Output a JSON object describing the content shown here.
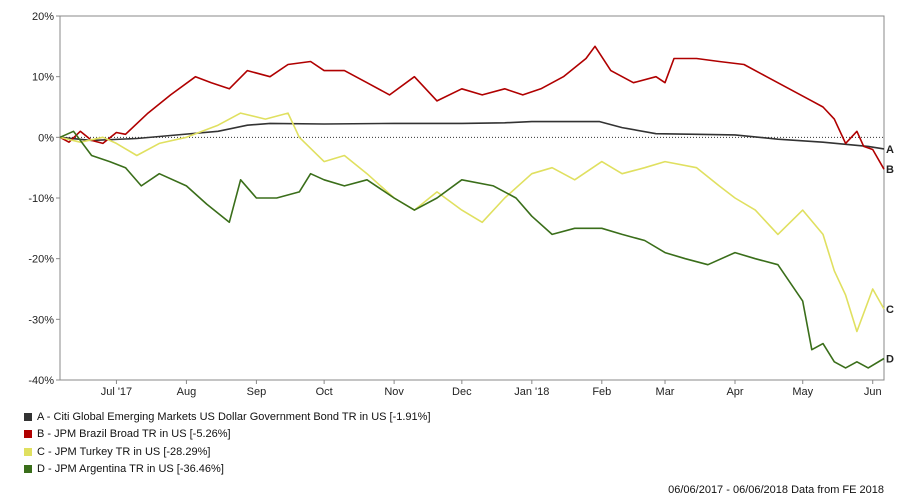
{
  "chart_data": {
    "type": "line",
    "y_ticks": [
      "20%",
      "10%",
      "0%",
      "-10%",
      "-20%",
      "-30%",
      "-40%"
    ],
    "ylim": [
      -40,
      20
    ],
    "x_ticks": [
      "Jul '17",
      "Aug",
      "Sep",
      "Oct",
      "Nov",
      "Dec",
      "Jan '18",
      "Feb",
      "Mar",
      "Apr",
      "May",
      "Jun"
    ],
    "x_tick_dates": [
      "2017-07-01",
      "2017-08-01",
      "2017-09-01",
      "2017-10-01",
      "2017-11-01",
      "2017-12-01",
      "2018-01-01",
      "2018-02-01",
      "2018-03-01",
      "2018-04-01",
      "2018-05-01",
      "2018-06-01"
    ],
    "xlim": [
      "2017-06-06",
      "2018-06-06"
    ],
    "grid": "horizontal zero line only",
    "series": [
      {
        "name": "A - Citi Global Emerging Markets US Dollar Government Bond TR in US [-1.91%]",
        "end_label": "A",
        "color": "#333333",
        "points": [
          [
            "2017-06-06",
            0
          ],
          [
            "2017-06-20",
            -0.5
          ],
          [
            "2017-07-10",
            -0.2
          ],
          [
            "2017-07-25",
            0.3
          ],
          [
            "2017-08-15",
            1
          ],
          [
            "2017-08-28",
            2
          ],
          [
            "2017-09-07",
            2.3
          ],
          [
            "2017-10-01",
            2.2
          ],
          [
            "2017-11-01",
            2.3
          ],
          [
            "2017-12-01",
            2.3
          ],
          [
            "2017-12-20",
            2.4
          ],
          [
            "2018-01-01",
            2.6
          ],
          [
            "2018-01-31",
            2.6
          ],
          [
            "2018-02-10",
            1.6
          ],
          [
            "2018-02-25",
            0.6
          ],
          [
            "2018-03-15",
            0.5
          ],
          [
            "2018-04-01",
            0.4
          ],
          [
            "2018-04-20",
            -0.3
          ],
          [
            "2018-05-10",
            -0.8
          ],
          [
            "2018-05-30",
            -1.5
          ],
          [
            "2018-06-06",
            -1.91
          ]
        ]
      },
      {
        "name": "B - JPM Brazil Broad TR in US [-5.26%]",
        "end_label": "B",
        "color": "#b00000",
        "points": [
          [
            "2017-06-06",
            0
          ],
          [
            "2017-06-10",
            -0.8
          ],
          [
            "2017-06-15",
            1
          ],
          [
            "2017-06-20",
            -0.5
          ],
          [
            "2017-06-25",
            -1
          ],
          [
            "2017-07-01",
            0.8
          ],
          [
            "2017-07-05",
            0.5
          ],
          [
            "2017-07-15",
            4
          ],
          [
            "2017-07-25",
            7
          ],
          [
            "2017-08-05",
            10
          ],
          [
            "2017-08-12",
            9
          ],
          [
            "2017-08-20",
            8
          ],
          [
            "2017-08-28",
            11
          ],
          [
            "2017-09-07",
            10
          ],
          [
            "2017-09-15",
            12
          ],
          [
            "2017-09-25",
            12.5
          ],
          [
            "2017-10-01",
            11
          ],
          [
            "2017-10-10",
            11
          ],
          [
            "2017-10-20",
            9
          ],
          [
            "2017-10-30",
            7
          ],
          [
            "2017-11-10",
            10
          ],
          [
            "2017-11-20",
            6
          ],
          [
            "2017-12-01",
            8
          ],
          [
            "2017-12-10",
            7
          ],
          [
            "2017-12-20",
            8
          ],
          [
            "2017-12-28",
            7
          ],
          [
            "2018-01-05",
            8
          ],
          [
            "2018-01-15",
            10
          ],
          [
            "2018-01-25",
            13
          ],
          [
            "2018-01-29",
            15
          ],
          [
            "2018-02-05",
            11
          ],
          [
            "2018-02-15",
            9
          ],
          [
            "2018-02-25",
            10
          ],
          [
            "2018-03-01",
            9
          ],
          [
            "2018-03-05",
            13
          ],
          [
            "2018-03-15",
            13
          ],
          [
            "2018-03-25",
            12.5
          ],
          [
            "2018-04-05",
            12
          ],
          [
            "2018-04-15",
            10
          ],
          [
            "2018-04-25",
            8
          ],
          [
            "2018-05-05",
            6
          ],
          [
            "2018-05-10",
            5
          ],
          [
            "2018-05-15",
            3
          ],
          [
            "2018-05-20",
            -1
          ],
          [
            "2018-05-25",
            1
          ],
          [
            "2018-05-28",
            -1.5
          ],
          [
            "2018-06-01",
            -2
          ],
          [
            "2018-06-06",
            -5.26
          ]
        ]
      },
      {
        "name": "C - JPM Turkey TR in US [-28.29%]",
        "end_label": "C",
        "color": "#e0e060",
        "points": [
          [
            "2017-06-06",
            0
          ],
          [
            "2017-06-15",
            -0.8
          ],
          [
            "2017-06-25",
            0
          ],
          [
            "2017-07-01",
            -1
          ],
          [
            "2017-07-10",
            -3
          ],
          [
            "2017-07-20",
            -1
          ],
          [
            "2017-08-01",
            0
          ],
          [
            "2017-08-15",
            2
          ],
          [
            "2017-08-25",
            4
          ],
          [
            "2017-09-05",
            3
          ],
          [
            "2017-09-15",
            4
          ],
          [
            "2017-09-20",
            0
          ],
          [
            "2017-10-01",
            -4
          ],
          [
            "2017-10-10",
            -3
          ],
          [
            "2017-10-20",
            -6
          ],
          [
            "2017-11-01",
            -10
          ],
          [
            "2017-11-10",
            -12
          ],
          [
            "2017-11-20",
            -9
          ],
          [
            "2017-12-01",
            -12
          ],
          [
            "2017-12-10",
            -14
          ],
          [
            "2017-12-20",
            -10
          ],
          [
            "2018-01-01",
            -6
          ],
          [
            "2018-01-10",
            -5
          ],
          [
            "2018-01-20",
            -7
          ],
          [
            "2018-02-01",
            -4
          ],
          [
            "2018-02-10",
            -6
          ],
          [
            "2018-02-20",
            -5
          ],
          [
            "2018-03-01",
            -4
          ],
          [
            "2018-03-15",
            -5
          ],
          [
            "2018-03-25",
            -8
          ],
          [
            "2018-04-01",
            -10
          ],
          [
            "2018-04-10",
            -12
          ],
          [
            "2018-04-20",
            -16
          ],
          [
            "2018-05-01",
            -12
          ],
          [
            "2018-05-10",
            -16
          ],
          [
            "2018-05-15",
            -22
          ],
          [
            "2018-05-20",
            -26
          ],
          [
            "2018-05-25",
            -32
          ],
          [
            "2018-06-01",
            -25
          ],
          [
            "2018-06-06",
            -28.29
          ]
        ]
      },
      {
        "name": "D - JPM Argentina TR in US [-36.46%]",
        "end_label": "D",
        "color": "#3a6e1a",
        "points": [
          [
            "2017-06-06",
            0
          ],
          [
            "2017-06-12",
            1
          ],
          [
            "2017-06-20",
            -3
          ],
          [
            "2017-06-28",
            -4
          ],
          [
            "2017-07-05",
            -5
          ],
          [
            "2017-07-12",
            -8
          ],
          [
            "2017-07-20",
            -6
          ],
          [
            "2017-08-01",
            -8
          ],
          [
            "2017-08-10",
            -11
          ],
          [
            "2017-08-20",
            -14
          ],
          [
            "2017-08-25",
            -7
          ],
          [
            "2017-09-01",
            -10
          ],
          [
            "2017-09-10",
            -10
          ],
          [
            "2017-09-20",
            -9
          ],
          [
            "2017-09-25",
            -6
          ],
          [
            "2017-10-01",
            -7
          ],
          [
            "2017-10-10",
            -8
          ],
          [
            "2017-10-20",
            -7
          ],
          [
            "2017-11-01",
            -10
          ],
          [
            "2017-11-10",
            -12
          ],
          [
            "2017-11-20",
            -10
          ],
          [
            "2017-12-01",
            -7
          ],
          [
            "2017-12-15",
            -8
          ],
          [
            "2017-12-25",
            -10
          ],
          [
            "2018-01-01",
            -13
          ],
          [
            "2018-01-10",
            -16
          ],
          [
            "2018-01-20",
            -15
          ],
          [
            "2018-02-01",
            -15
          ],
          [
            "2018-02-10",
            -16
          ],
          [
            "2018-02-20",
            -17
          ],
          [
            "2018-03-01",
            -19
          ],
          [
            "2018-03-10",
            -20
          ],
          [
            "2018-03-20",
            -21
          ],
          [
            "2018-04-01",
            -19
          ],
          [
            "2018-04-10",
            -20
          ],
          [
            "2018-04-20",
            -21
          ],
          [
            "2018-05-01",
            -27
          ],
          [
            "2018-05-05",
            -35
          ],
          [
            "2018-05-10",
            -34
          ],
          [
            "2018-05-15",
            -37
          ],
          [
            "2018-05-20",
            -38
          ],
          [
            "2018-05-25",
            -37
          ],
          [
            "2018-05-30",
            -38
          ],
          [
            "2018-06-06",
            -36.46
          ]
        ]
      }
    ]
  },
  "footer": {
    "text": "06/06/2017 - 06/06/2018 Data from FE 2018"
  }
}
